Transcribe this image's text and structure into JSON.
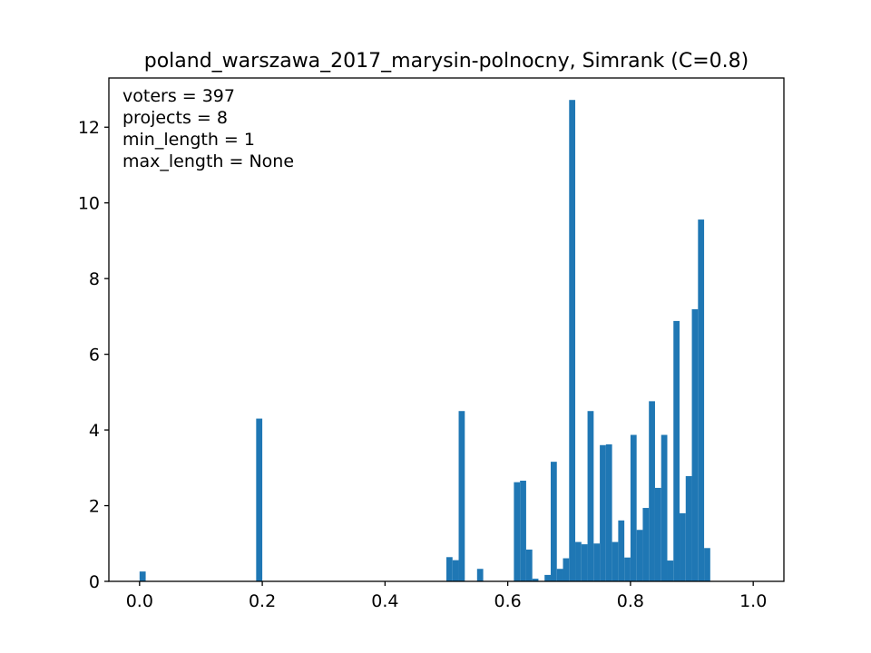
{
  "chart_data": {
    "type": "bar",
    "title": "poland_warszawa_2017_marysin-polnocny, Simrank (C=0.8)",
    "xlabel": "",
    "ylabel": "",
    "xlim": [
      -0.05,
      1.05
    ],
    "ylim": [
      0,
      13.3
    ],
    "bin_width": 0.01,
    "grid": false,
    "bar_color": "#1f77b4",
    "x_ticks": [
      {
        "value": 0.0,
        "label": "0.0"
      },
      {
        "value": 0.2,
        "label": "0.2"
      },
      {
        "value": 0.4,
        "label": "0.4"
      },
      {
        "value": 0.6,
        "label": "0.6"
      },
      {
        "value": 0.8,
        "label": "0.8"
      },
      {
        "value": 1.0,
        "label": "1.0"
      }
    ],
    "y_ticks": [
      {
        "value": 0,
        "label": "0"
      },
      {
        "value": 2,
        "label": "2"
      },
      {
        "value": 4,
        "label": "4"
      },
      {
        "value": 6,
        "label": "6"
      },
      {
        "value": 8,
        "label": "8"
      },
      {
        "value": 10,
        "label": "10"
      },
      {
        "value": 12,
        "label": "12"
      }
    ],
    "annotations": [
      "voters = 397",
      "projects = 8",
      "min_length = 1",
      "max_length = None"
    ],
    "bars": [
      {
        "x": 0.0,
        "value": 0.26
      },
      {
        "x": 0.19,
        "value": 4.3
      },
      {
        "x": 0.5,
        "value": 0.64
      },
      {
        "x": 0.51,
        "value": 0.56
      },
      {
        "x": 0.52,
        "value": 4.5
      },
      {
        "x": 0.55,
        "value": 0.33
      },
      {
        "x": 0.61,
        "value": 2.62
      },
      {
        "x": 0.62,
        "value": 2.66
      },
      {
        "x": 0.63,
        "value": 0.84
      },
      {
        "x": 0.64,
        "value": 0.07
      },
      {
        "x": 0.66,
        "value": 0.17
      },
      {
        "x": 0.67,
        "value": 3.16
      },
      {
        "x": 0.68,
        "value": 0.33
      },
      {
        "x": 0.69,
        "value": 0.61
      },
      {
        "x": 0.7,
        "value": 12.72
      },
      {
        "x": 0.71,
        "value": 1.04
      },
      {
        "x": 0.72,
        "value": 0.98
      },
      {
        "x": 0.73,
        "value": 4.5
      },
      {
        "x": 0.74,
        "value": 1.0
      },
      {
        "x": 0.75,
        "value": 3.6
      },
      {
        "x": 0.76,
        "value": 3.62
      },
      {
        "x": 0.77,
        "value": 1.04
      },
      {
        "x": 0.78,
        "value": 1.61
      },
      {
        "x": 0.79,
        "value": 0.63
      },
      {
        "x": 0.8,
        "value": 3.87
      },
      {
        "x": 0.81,
        "value": 1.36
      },
      {
        "x": 0.82,
        "value": 1.94
      },
      {
        "x": 0.83,
        "value": 4.76
      },
      {
        "x": 0.84,
        "value": 2.47
      },
      {
        "x": 0.85,
        "value": 3.87
      },
      {
        "x": 0.86,
        "value": 0.55
      },
      {
        "x": 0.87,
        "value": 6.88
      },
      {
        "x": 0.88,
        "value": 1.8
      },
      {
        "x": 0.89,
        "value": 2.78
      },
      {
        "x": 0.9,
        "value": 7.19
      },
      {
        "x": 0.91,
        "value": 9.56
      },
      {
        "x": 0.92,
        "value": 0.88
      }
    ]
  }
}
